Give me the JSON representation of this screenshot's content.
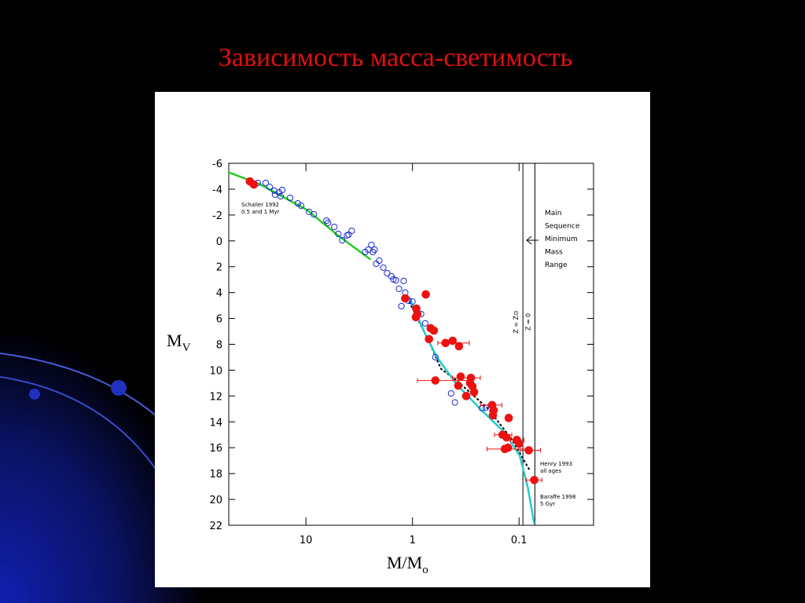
{
  "chart_data": {
    "type": "scatter",
    "title": "Зависимость масса-светимость",
    "xlabel": "M/M",
    "xlabel_sub": "o",
    "ylabel": "M",
    "ylabel_sub": "V",
    "xscale": "log",
    "xlim": [
      53,
      0.02
    ],
    "xticks": [
      10,
      1,
      0.1
    ],
    "ylim": [
      -6,
      22
    ],
    "yticks": [
      -6,
      -4,
      -2,
      0,
      2,
      4,
      6,
      8,
      10,
      12,
      14,
      16,
      18,
      20,
      22
    ],
    "lines": [
      {
        "name": "Schaller 1992",
        "detail": "0.5 and 1 Myr",
        "color": "#22cc22",
        "style": "solid",
        "x": [
          53,
          27.3,
          9.8,
          4.97,
          2.51
        ],
        "values": [
          -5.3,
          -4.4,
          -2.4,
          -0.4,
          1.4
        ]
      },
      {
        "name": "Henry 1993",
        "detail": "all ages",
        "color": "#000000",
        "style": "dotted",
        "x": [
          1.07,
          0.7,
          0.54,
          0.385,
          0.194,
          0.116,
          0.08
        ],
        "values": [
          4.75,
          7.8,
          9.9,
          10.8,
          13,
          15.4,
          17.7
        ]
      },
      {
        "name": "Baraffe 1998",
        "detail": "5 Gyr",
        "color": "#22cccc",
        "style": "solid",
        "x": [
          1.07,
          0.76,
          0.59,
          0.385,
          0.231,
          0.138,
          0.0987,
          0.083,
          0.0724
        ],
        "values": [
          4.4,
          7.2,
          9,
          11.1,
          13,
          14.8,
          16.6,
          19,
          21.8
        ]
      }
    ],
    "series": [
      {
        "color": "#1a2ad6",
        "marker": "open",
        "x": [
          28.3,
          23.9,
          21.9,
          19.8,
          17.9,
          16.7,
          19.5,
          17.3,
          14.1,
          11.9,
          11.1,
          9.33,
          8.43,
          6.42,
          6.2,
          5.41,
          4.97,
          4.56,
          4.12,
          3.72,
          3.98,
          2.78,
          2.6,
          2.43,
          2.35,
          2.27,
          2.05,
          2.19,
          1.88,
          1.73,
          1.58,
          1.51,
          1.43,
          1.21,
          1.34,
          1.17,
          1.09,
          1.27,
          1.0,
          0.83,
          0.76,
          0.61,
          0.434,
          0.4,
          0.223,
          0.205
        ],
        "values": [
          -4.48,
          -4.48,
          -4.18,
          -3.88,
          -3.75,
          -3.94,
          -3.57,
          -3.45,
          -3.33,
          -2.9,
          -2.72,
          -2.24,
          -2.05,
          -1.57,
          -1.39,
          -1.08,
          -0.54,
          -0.05,
          -0.42,
          -0.78,
          -0.48,
          0.86,
          0.68,
          0.31,
          0.86,
          0.68,
          1.53,
          1.77,
          2.07,
          2.5,
          2.74,
          2.98,
          3.05,
          3.1,
          3.71,
          4.0,
          4.63,
          5.05,
          4.69,
          5.66,
          6.38,
          9.0,
          11.8,
          12.5,
          12.95,
          12.9
        ]
      },
      {
        "color": "#ee1111",
        "marker": "filled",
        "x": [
          33.6,
          30.8,
          1.17,
          0.75,
          0.92,
          0.9,
          0.93,
          0.675,
          0.63,
          0.7,
          0.49,
          0.42,
          0.366,
          0.61,
          0.353,
          0.372,
          0.283,
          0.288,
          0.274,
          0.264,
          0.313,
          0.179,
          0.173,
          0.176,
          0.125,
          0.143,
          0.131,
          0.105,
          0.127,
          0.1,
          0.081,
          0.136,
          0.072
        ],
        "values": [
          -4.6,
          -4.36,
          4.45,
          4.14,
          5.24,
          5.66,
          5.9,
          6.76,
          6.94,
          7.6,
          7.9,
          7.73,
          8.15,
          10.8,
          10.5,
          11.2,
          10.6,
          11.0,
          11.25,
          11.7,
          12.0,
          12.7,
          13.1,
          13.5,
          13.7,
          15.0,
          15.2,
          15.4,
          16.0,
          15.7,
          16.2,
          16.1,
          18.5
        ],
        "x_lo": [
          null,
          null,
          null,
          null,
          null,
          null,
          null,
          null,
          null,
          null,
          0.58,
          null,
          null,
          0.9,
          null,
          null,
          0.42,
          null,
          null,
          null,
          null,
          0.231,
          null,
          null,
          null,
          0.17,
          null,
          0.12,
          null,
          null,
          0.098,
          0.2,
          0.086
        ],
        "x_hi": [
          null,
          null,
          null,
          null,
          null,
          null,
          null,
          null,
          null,
          null,
          0.293,
          null,
          null,
          0.298,
          null,
          null,
          0.231,
          null,
          null,
          null,
          null,
          0.145,
          null,
          null,
          null,
          0.117,
          null,
          0.09,
          null,
          null,
          0.063,
          0.079,
          0.061
        ]
      }
    ],
    "vlines": [
      {
        "x": 0.092,
        "label": "Z = Z⊙"
      },
      {
        "x": 0.071,
        "label": "Z = 0"
      }
    ],
    "note": [
      "Main",
      "Sequence",
      "Minimum",
      "Mass",
      "Range"
    ]
  }
}
